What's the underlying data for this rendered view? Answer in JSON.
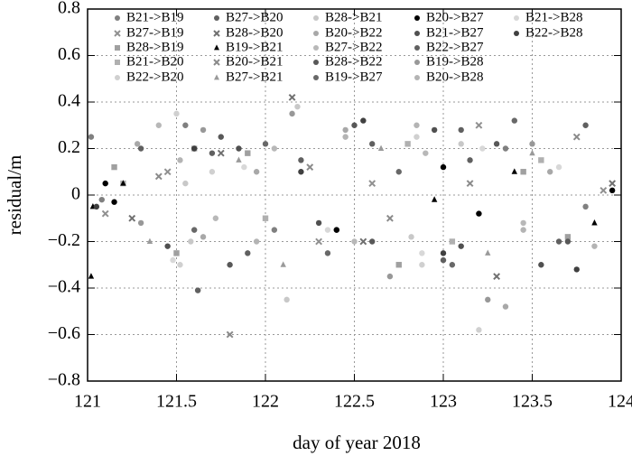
{
  "chart_data": {
    "type": "scatter",
    "x_label": "day of year 2018",
    "y_label": "residual/m",
    "xlim": [
      121,
      124
    ],
    "ylim": [
      -0.8,
      0.8
    ],
    "xticks": [
      121,
      121.5,
      122,
      122.5,
      123,
      123.5,
      124
    ],
    "yticks": [
      {
        "value": -0.8,
        "label": "−0.8"
      },
      {
        "value": -0.6,
        "label": "−0.6"
      },
      {
        "value": -0.4,
        "label": "−0.4"
      },
      {
        "value": -0.2,
        "label": "−0.2"
      },
      0,
      0.2,
      0.4,
      0.6,
      0.8
    ],
    "grid": true,
    "legend": "top",
    "series": [
      {
        "name": "B21->B19",
        "color": "#808080",
        "marker": "circle",
        "x": [
          121.02,
          121.08,
          121.55,
          122.05,
          123.35,
          123.8
        ],
        "values": [
          0.25,
          -0.02,
          0.3,
          -0.15,
          0.2,
          -0.05
        ]
      },
      {
        "name": "B27->B19",
        "color": "#909090",
        "marker": "cross",
        "x": [
          121.1,
          121.45,
          122.3,
          122.6,
          123.2,
          123.9
        ],
        "values": [
          -0.08,
          0.1,
          -0.2,
          0.05,
          0.3,
          0.02
        ]
      },
      {
        "name": "B28->B19",
        "color": "#a0a0a0",
        "marker": "square",
        "x": [
          121.15,
          121.5,
          121.9,
          122.75,
          123.45,
          123.7
        ],
        "values": [
          0.12,
          -0.25,
          0.18,
          -0.3,
          0.1,
          -0.18
        ]
      },
      {
        "name": "B21->B20",
        "color": "#b0b0b0",
        "marker": "square",
        "x": [
          121.2,
          121.6,
          122.0,
          122.8,
          123.05,
          123.55
        ],
        "values": [
          0.05,
          0.2,
          -0.1,
          0.22,
          -0.2,
          0.15
        ]
      },
      {
        "name": "B22->B20",
        "color": "#d0d0d0",
        "marker": "circle",
        "x": [
          121.5,
          121.52,
          121.7,
          122.85,
          122.88,
          123.2
        ],
        "values": [
          0.35,
          -0.3,
          0.1,
          0.25,
          -0.3,
          -0.58
        ]
      },
      {
        "name": "B27->B20",
        "color": "#606060",
        "marker": "circle",
        "x": [
          121.3,
          121.62,
          122.2,
          122.4,
          123.1,
          123.65
        ],
        "values": [
          0.2,
          -0.41,
          0.15,
          -0.15,
          0.28,
          -0.2
        ]
      },
      {
        "name": "B28->B20",
        "color": "#707070",
        "marker": "cross",
        "x": [
          121.25,
          121.75,
          122.15,
          122.55,
          123.3,
          123.95
        ],
        "values": [
          -0.1,
          0.18,
          0.42,
          -0.2,
          -0.35,
          0.05
        ]
      },
      {
        "name": "B19->B21",
        "color": "#000000",
        "marker": "triangle",
        "x": [
          121.02,
          121.03,
          121.2,
          122.95,
          123.4,
          123.85
        ],
        "values": [
          -0.35,
          -0.05,
          0.05,
          -0.02,
          0.1,
          -0.12
        ]
      },
      {
        "name": "B20->B21",
        "color": "#8a8a8a",
        "marker": "cross",
        "x": [
          121.4,
          121.8,
          122.25,
          122.7,
          123.15,
          123.75
        ],
        "values": [
          0.08,
          -0.6,
          0.12,
          -0.1,
          0.05,
          0.25
        ]
      },
      {
        "name": "B27->B21",
        "color": "#9a9a9a",
        "marker": "triangle",
        "x": [
          121.35,
          121.85,
          122.1,
          122.65,
          123.25,
          123.5
        ],
        "values": [
          -0.2,
          0.15,
          -0.3,
          0.2,
          -0.25,
          0.18
        ]
      },
      {
        "name": "B28->B21",
        "color": "#c8c8c8",
        "marker": "circle",
        "x": [
          121.55,
          121.58,
          122.12,
          122.18,
          122.82,
          123.1
        ],
        "values": [
          0.05,
          -0.2,
          -0.45,
          0.38,
          -0.18,
          0.22
        ]
      },
      {
        "name": "B20->B22",
        "color": "#a8a8a8",
        "marker": "circle",
        "x": [
          121.28,
          121.65,
          121.95,
          122.45,
          123.35,
          123.6
        ],
        "values": [
          0.22,
          -0.18,
          0.1,
          0.28,
          -0.48,
          0.1
        ]
      },
      {
        "name": "B27->B22",
        "color": "#b8b8b8",
        "marker": "circle",
        "x": [
          121.4,
          121.72,
          122.05,
          122.5,
          122.9,
          123.45
        ],
        "values": [
          0.3,
          -0.1,
          0.2,
          -0.2,
          0.18,
          -0.12
        ]
      },
      {
        "name": "B28->B22",
        "color": "#585858",
        "marker": "circle",
        "x": [
          121.75,
          121.8,
          122.5,
          122.6,
          123.3,
          123.7
        ],
        "values": [
          0.25,
          -0.3,
          0.3,
          -0.2,
          0.22,
          -0.2
        ]
      },
      {
        "name": "B19->B27",
        "color": "#686868",
        "marker": "circle",
        "x": [
          121.6,
          122.0,
          122.35,
          122.75,
          123.05,
          123.4
        ],
        "values": [
          -0.15,
          0.22,
          -0.25,
          0.1,
          -0.3,
          0.32
        ]
      },
      {
        "name": "B20->B27",
        "color": "#000000",
        "marker": "circle",
        "x": [
          121.1,
          121.15,
          122.4,
          123.0,
          123.2,
          123.95
        ],
        "values": [
          0.05,
          -0.03,
          -0.15,
          0.12,
          -0.08,
          0.02
        ]
      },
      {
        "name": "B21->B27",
        "color": "#505050",
        "marker": "circle",
        "x": [
          121.45,
          121.85,
          122.3,
          122.95,
          123.1,
          123.55
        ],
        "values": [
          -0.22,
          0.2,
          -0.12,
          0.28,
          -0.22,
          -0.3
        ]
      },
      {
        "name": "B22->B27",
        "color": "#606060",
        "marker": "circle",
        "x": [
          121.7,
          121.9,
          122.6,
          123.0,
          123.15,
          123.8
        ],
        "values": [
          0.18,
          -0.25,
          0.22,
          -0.28,
          0.15,
          0.3
        ]
      },
      {
        "name": "B19->B28",
        "color": "#989898",
        "marker": "circle",
        "x": [
          121.3,
          121.65,
          122.15,
          122.7,
          123.25,
          123.5
        ],
        "values": [
          -0.12,
          0.28,
          0.35,
          -0.35,
          -0.45,
          0.22
        ]
      },
      {
        "name": "B20->B28",
        "color": "#b4b4b4",
        "marker": "circle",
        "x": [
          121.52,
          121.95,
          122.45,
          122.85,
          123.45,
          123.85
        ],
        "values": [
          0.15,
          -0.2,
          0.25,
          0.3,
          -0.15,
          -0.22
        ]
      },
      {
        "name": "B21->B28",
        "color": "#d8d8d8",
        "marker": "circle",
        "x": [
          121.48,
          121.88,
          122.35,
          122.88,
          123.22,
          123.65
        ],
        "values": [
          -0.28,
          0.12,
          -0.15,
          -0.25,
          0.2,
          0.12
        ]
      },
      {
        "name": "B22->B28",
        "color": "#404040",
        "marker": "circle",
        "x": [
          121.05,
          121.6,
          122.2,
          122.55,
          123.0,
          123.75
        ],
        "values": [
          -0.05,
          0.2,
          0.1,
          0.32,
          -0.25,
          -0.32
        ]
      }
    ]
  }
}
